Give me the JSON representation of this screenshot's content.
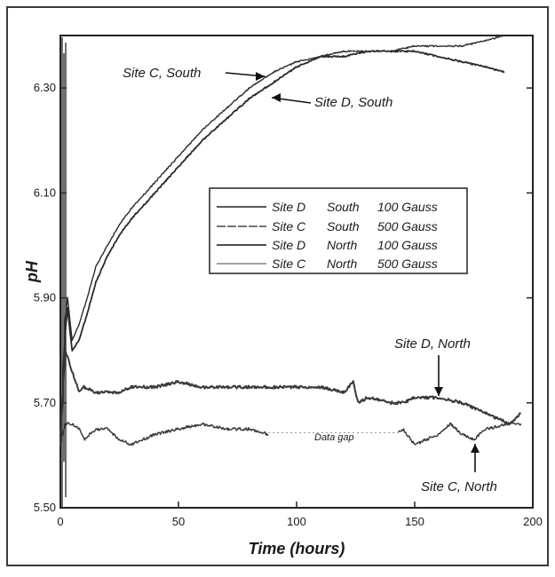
{
  "chart_data": {
    "type": "line",
    "xlabel": "Time (hours)",
    "ylabel": "pH",
    "xlim": [
      0,
      200
    ],
    "ylim": [
      5.5,
      6.4
    ],
    "x_ticks": [
      {
        "value": 0,
        "label": "0"
      },
      {
        "value": 50,
        "label": "50"
      },
      {
        "value": 100,
        "label": "100"
      },
      {
        "value": 150,
        "label": "150"
      },
      {
        "value": 200,
        "label": "200"
      }
    ],
    "y_ticks": [
      {
        "value": 5.5,
        "label": "5.50"
      },
      {
        "value": 5.7,
        "label": "5.70"
      },
      {
        "value": 5.9,
        "label": "5.90"
      },
      {
        "value": 6.1,
        "label": "6.10"
      },
      {
        "value": 6.3,
        "label": "6.30"
      }
    ],
    "grid": false,
    "legend_position": "center-right",
    "legend": [
      {
        "site": "Site D",
        "location": "South",
        "field": "100 Gauss"
      },
      {
        "site": "Site C",
        "location": "South",
        "field": "500 Gauss"
      },
      {
        "site": "Site D",
        "location": "North",
        "field": "100 Gauss"
      },
      {
        "site": "Site C",
        "location": "North",
        "field": "500 Gauss"
      }
    ],
    "series": [
      {
        "key": "d_south",
        "color": "#2a2a2a",
        "x": [
          0,
          2,
          3,
          5,
          8,
          12,
          15,
          20,
          25,
          30,
          40,
          50,
          60,
          70,
          80,
          90,
          100,
          110,
          120,
          130,
          140,
          150,
          160,
          170,
          180,
          188
        ],
        "y": [
          5.62,
          5.83,
          5.88,
          5.8,
          5.82,
          5.88,
          5.93,
          5.98,
          6.02,
          6.05,
          6.1,
          6.15,
          6.2,
          6.24,
          6.28,
          6.31,
          6.34,
          6.36,
          6.36,
          6.37,
          6.37,
          6.37,
          6.36,
          6.35,
          6.34,
          6.33
        ]
      },
      {
        "key": "c_south",
        "color": "#2a2a2a",
        "x": [
          0,
          2,
          3,
          5,
          8,
          12,
          15,
          20,
          25,
          30,
          40,
          50,
          60,
          70,
          80,
          90,
          100,
          110,
          120,
          130,
          140,
          150,
          160,
          170,
          180,
          188
        ],
        "y": [
          5.62,
          5.86,
          5.9,
          5.82,
          5.85,
          5.91,
          5.96,
          6.0,
          6.04,
          6.07,
          6.12,
          6.17,
          6.22,
          6.26,
          6.3,
          6.33,
          6.35,
          6.36,
          6.37,
          6.37,
          6.37,
          6.38,
          6.38,
          6.38,
          6.39,
          6.4
        ]
      },
      {
        "key": "d_north",
        "color": "#3a3a3a",
        "x": [
          0,
          2,
          5,
          8,
          10,
          15,
          20,
          25,
          30,
          40,
          50,
          60,
          70,
          80,
          90,
          100,
          110,
          120,
          124,
          126,
          130,
          140,
          145,
          150,
          160,
          170,
          180,
          190,
          195
        ],
        "y": [
          5.62,
          5.8,
          5.76,
          5.72,
          5.73,
          5.72,
          5.72,
          5.72,
          5.73,
          5.73,
          5.74,
          5.73,
          5.73,
          5.73,
          5.73,
          5.73,
          5.73,
          5.72,
          5.74,
          5.7,
          5.71,
          5.7,
          5.7,
          5.71,
          5.71,
          5.7,
          5.68,
          5.66,
          5.68
        ]
      },
      {
        "key": "c_north",
        "color": "#3a3a3a",
        "x": [
          0,
          2,
          5,
          8,
          10,
          15,
          20,
          25,
          30,
          35,
          40,
          50,
          60,
          70,
          80,
          88,
          95,
          110,
          120,
          130,
          140,
          145,
          150,
          160,
          165,
          170,
          175,
          180,
          190,
          195
        ],
        "y": [
          5.62,
          5.66,
          5.66,
          5.65,
          5.63,
          5.65,
          5.65,
          5.63,
          5.62,
          5.63,
          5.64,
          5.65,
          5.66,
          5.65,
          5.65,
          5.64,
          5.64,
          5.64,
          5.64,
          5.64,
          5.64,
          5.65,
          5.62,
          5.64,
          5.66,
          5.64,
          5.63,
          5.65,
          5.66,
          5.66
        ]
      }
    ],
    "annotations": {
      "c_south": "Site C, South",
      "d_south": "Site D, South",
      "d_north": "Site D, North",
      "c_north": "Site C, North",
      "gap": "Data gap"
    }
  }
}
